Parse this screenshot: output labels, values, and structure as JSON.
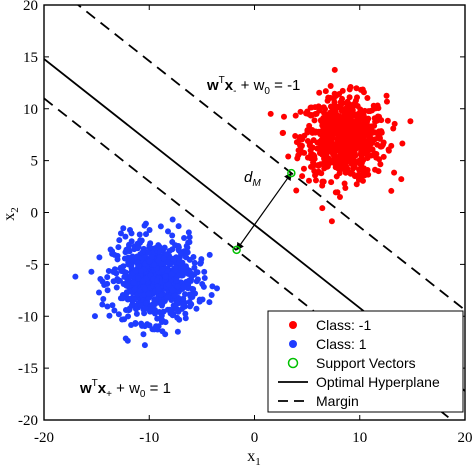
{
  "chart_data": {
    "type": "scatter",
    "xlabel": "x",
    "xlabel_sub": "1",
    "ylabel": "x",
    "ylabel_sub": "2",
    "xlim": [
      -20,
      20
    ],
    "ylim": [
      -20,
      20
    ],
    "xticks": [
      -20,
      -10,
      0,
      10,
      20
    ],
    "yticks": [
      -20,
      -15,
      -10,
      -5,
      0,
      5,
      10,
      15,
      20
    ],
    "grid": false,
    "legend_position": "bottom-right",
    "series": [
      {
        "name": "Class: -1",
        "color": "#ff0000",
        "center": [
          8.5,
          7.2
        ],
        "spread": [
          2.0,
          2.0
        ],
        "count": 700
      },
      {
        "name": "Class: 1",
        "color": "#1f3cff",
        "center": [
          -9.5,
          -6.5
        ],
        "spread": [
          2.0,
          2.0
        ],
        "count": 700
      },
      {
        "name": "Support Vectors",
        "color": "#00c000",
        "marker": "circle-open",
        "points": [
          [
            3.5,
            3.8
          ],
          [
            -1.7,
            -3.6
          ]
        ]
      }
    ],
    "lines": [
      {
        "name": "Optimal Hyperplane",
        "style": "solid",
        "slope": -0.8,
        "intercept": -1.2
      },
      {
        "name": "Margin",
        "style": "dashed",
        "slope": -0.8,
        "intercept": 6.6
      },
      {
        "name": "Margin",
        "style": "dashed",
        "slope": -0.8,
        "intercept": -5.0
      }
    ],
    "legend_entries": [
      {
        "label": "Class: -1",
        "kind": "dot",
        "color": "#ff0000"
      },
      {
        "label": "Class: 1",
        "kind": "dot",
        "color": "#1f3cff"
      },
      {
        "label": "Support Vectors",
        "kind": "open-circle",
        "color": "#00c000"
      },
      {
        "label": "Optimal Hyperplane",
        "kind": "solid-line",
        "color": "#000000"
      },
      {
        "label": "Margin",
        "kind": "dashed-line",
        "color": "#000000"
      }
    ],
    "annotations": {
      "margin_distance_label": "d",
      "margin_distance_sub": "M",
      "margin_arrow": {
        "from": [
          3.5,
          3.8
        ],
        "to": [
          -1.7,
          -3.6
        ]
      },
      "upper_margin_eq": {
        "w": "w",
        "sup": "T",
        "x": "x",
        "sub": "-",
        "rest": " + w",
        "rest_sub": "0",
        "rhs": " = -1"
      },
      "lower_margin_eq": {
        "w": "w",
        "sup": "T",
        "x": "x",
        "sub": "+",
        "rest": " + w",
        "rest_sub": "0",
        "rhs": " = 1"
      }
    }
  }
}
